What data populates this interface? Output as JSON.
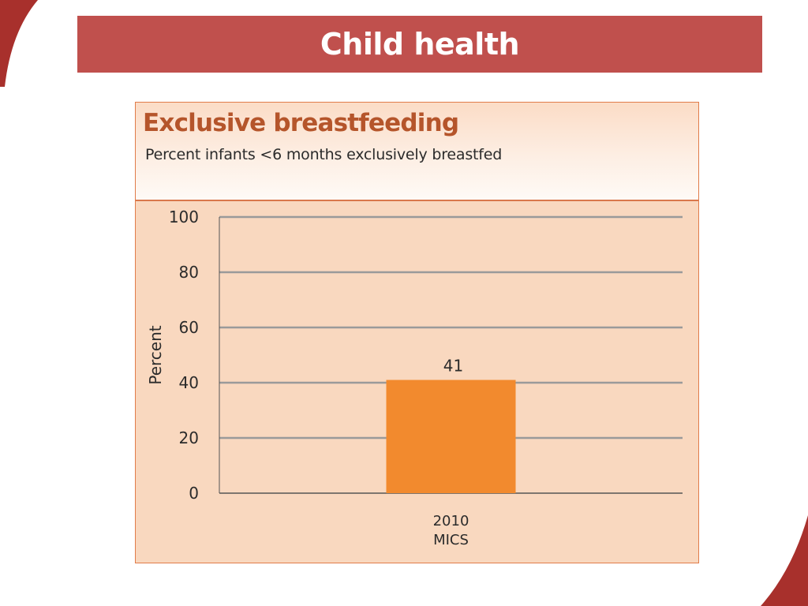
{
  "slide": {
    "title": "Child health",
    "accent_color": "#c0504d"
  },
  "chart_data": {
    "type": "bar",
    "title": "Exclusive breastfeeding",
    "subtitle": "Percent infants <6 months exclusively breastfed",
    "ylabel": "Percent",
    "xlabel": "",
    "ylim": [
      0,
      100
    ],
    "yticks": [
      0,
      20,
      40,
      60,
      80,
      100
    ],
    "grid": true,
    "categories": [
      [
        "2010",
        "MICS"
      ]
    ],
    "values": [
      41
    ],
    "bar_color": "#f28a2e",
    "title_color": "#b5552b",
    "background_color": "#f9d8bf"
  }
}
